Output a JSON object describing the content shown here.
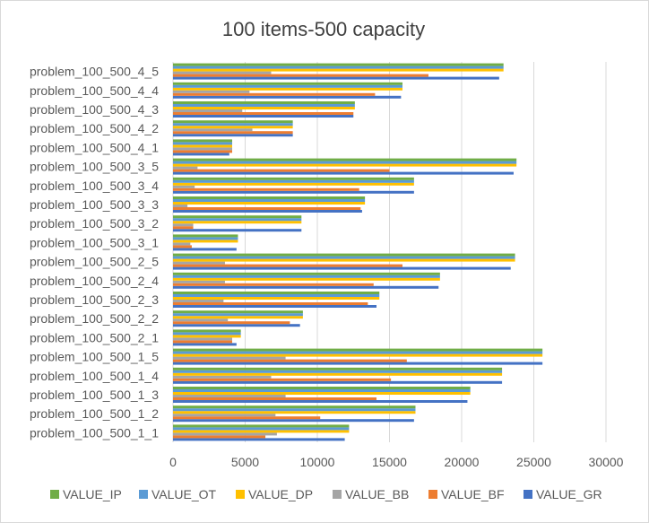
{
  "chart_data": {
    "type": "bar",
    "orientation": "horizontal",
    "title": "100 items-500 capacity",
    "xlabel": "",
    "ylabel": "",
    "xlim": [
      0,
      30000
    ],
    "x_ticks": [
      0,
      5000,
      10000,
      15000,
      20000,
      25000,
      30000
    ],
    "grid": "vertical",
    "legend_position": "bottom",
    "categories": [
      "problem_100_500_1_1",
      "problem_100_500_1_2",
      "problem_100_500_1_3",
      "problem_100_500_1_4",
      "problem_100_500_1_5",
      "problem_100_500_2_1",
      "problem_100_500_2_2",
      "problem_100_500_2_3",
      "problem_100_500_2_4",
      "problem_100_500_2_5",
      "problem_100_500_3_1",
      "problem_100_500_3_2",
      "problem_100_500_3_3",
      "problem_100_500_3_4",
      "problem_100_500_3_5",
      "problem_100_500_4_1",
      "problem_100_500_4_2",
      "problem_100_500_4_3",
      "problem_100_500_4_4",
      "problem_100_500_4_5"
    ],
    "series": [
      {
        "name": "VALUE_GR",
        "color": "#4472C4",
        "values": [
          11900,
          16700,
          20400,
          22800,
          25600,
          4400,
          8800,
          14100,
          18400,
          23400,
          4400,
          8900,
          13100,
          16700,
          23600,
          3900,
          8300,
          12500,
          15800,
          22600
        ]
      },
      {
        "name": "VALUE_BF",
        "color": "#ED7D31",
        "values": [
          6400,
          10200,
          14100,
          15100,
          16200,
          4100,
          8100,
          13500,
          13900,
          15900,
          1300,
          1400,
          13000,
          12900,
          15000,
          4100,
          8300,
          12500,
          14000,
          17700
        ]
      },
      {
        "name": "VALUE_BB",
        "color": "#A5A5A5",
        "values": [
          7200,
          7100,
          7800,
          6800,
          7800,
          4100,
          3800,
          3500,
          3600,
          3600,
          1200,
          1400,
          1000,
          1500,
          1700,
          4100,
          5500,
          4800,
          5300,
          6800
        ]
      },
      {
        "name": "VALUE_DP",
        "color": "#FFC000",
        "values": [
          12200,
          16800,
          20600,
          22800,
          25600,
          4700,
          9000,
          14300,
          18500,
          23700,
          4500,
          8900,
          13300,
          16700,
          23800,
          4100,
          8300,
          12600,
          15900,
          22900
        ]
      },
      {
        "name": "VALUE_OT",
        "color": "#5B9BD5",
        "values": [
          12200,
          16800,
          20600,
          22800,
          25600,
          4700,
          9000,
          14300,
          18500,
          23700,
          4500,
          8900,
          13300,
          16700,
          23800,
          4100,
          8300,
          12600,
          15900,
          22900
        ]
      },
      {
        "name": "VALUE_IP",
        "color": "#70AD47",
        "values": [
          12200,
          16800,
          20600,
          22800,
          25600,
          4700,
          9000,
          14300,
          18500,
          23700,
          4500,
          8900,
          13300,
          16700,
          23800,
          4100,
          8300,
          12600,
          15900,
          22900
        ]
      }
    ],
    "legend_order": [
      "VALUE_IP",
      "VALUE_OT",
      "VALUE_DP",
      "VALUE_BB",
      "VALUE_BF",
      "VALUE_GR"
    ]
  }
}
